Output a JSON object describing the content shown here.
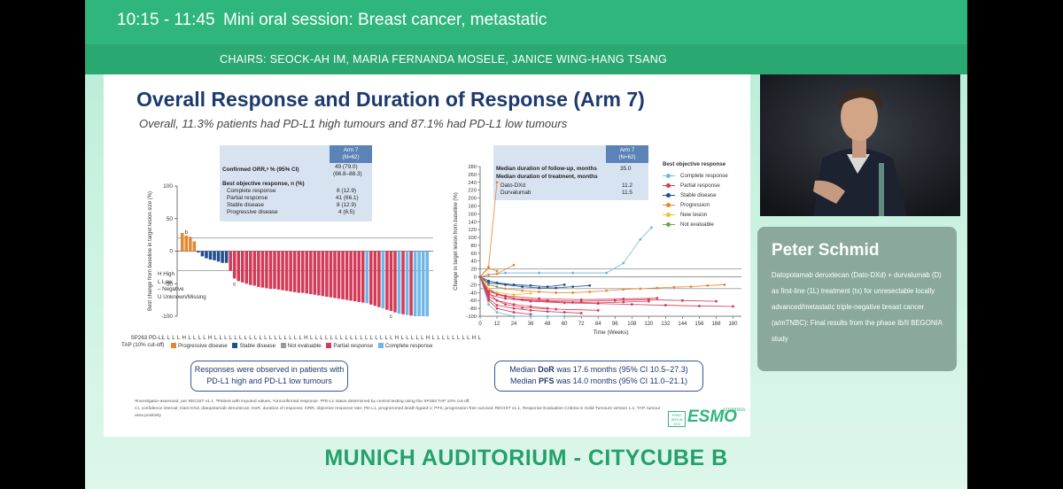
{
  "session": {
    "time": "10:15 - 11:45",
    "title": "Mini oral session: Breast cancer, metastatic",
    "chairs": "CHAIRS: SEOCK-AH IM, MARIA FERNANDA MOSELE, JANICE WING-HANG TSANG",
    "venue": "MUNICH AUDITORIUM - CITYCUBE B"
  },
  "speaker": {
    "name": "Peter Schmid",
    "talk": "Datopotamab deruxtecan (Dato-DXd) + durvalumab (D) as first-line (1L) treatment (tx) for unresectable locally advanced/metastatic triple-negative breast cancer (a/mTNBC): Final results from the phase Ib/II BEGONIA study"
  },
  "slide": {
    "title": "Overall Response and Duration of Response (Arm 7)",
    "subtitle": "Overall, 11.3% patients had PD-L1 high tumours and 87.1% had PD-L1 low tumours",
    "table1": {
      "header": [
        "Arm 7",
        "(N=62)"
      ],
      "orr_label": "Confirmed ORR,ᵃ % (95% CI)",
      "orr_value": [
        "49 (79.0)",
        "(66.8–88.3)"
      ],
      "bor_label": "Best objective response, n (%)",
      "rows": [
        {
          "label": "Complete response",
          "value": "8 (12.9)"
        },
        {
          "label": "Partial response",
          "value": "41 (66.1)"
        },
        {
          "label": "Stable disease",
          "value": "8 (12.9)"
        },
        {
          "label": "Progressive disease",
          "value": "4 (6.5)"
        }
      ]
    },
    "table2": {
      "header": [
        "Arm 7",
        "(N=62)"
      ],
      "followup_label": "Median duration of follow-up, months",
      "followup_value": "35.0",
      "treatment_label": "Median duration of treatment, months",
      "rows": [
        {
          "label": "Dato-DXd",
          "value": "11.2"
        },
        {
          "label": "Durvalumab",
          "value": "11.5"
        }
      ]
    },
    "waterfall_ylabel": "Best change from baseline in target lesion size (%)",
    "hll_legend": [
      "H  High",
      "L  Low",
      "–  Negative",
      "U  Unknown/Missing"
    ],
    "tap_label": [
      "SP263 PD-L1",
      "TAP (10% cut-off)"
    ],
    "tap_codes": "L L L L H L L L L H L L L L L L L L L L L L L L L L L L H L L L L L L L L L L L L L L L L L H L L L L L H L L L L L L L L H L",
    "waterfall_legend": [
      {
        "label": "Progressive disease",
        "color": "#e8862e"
      },
      {
        "label": "Stable disease",
        "color": "#1f4e8f"
      },
      {
        "label": "Not evaluable",
        "color": "#9a9a9a"
      },
      {
        "label": "Partial response",
        "color": "#d43a57"
      },
      {
        "label": "Complete response",
        "color": "#6fb7e6"
      }
    ],
    "callout_left": [
      "Responses were observed in patients with",
      "PD-L1 high and PD-L1 low tumours"
    ],
    "callout_right_dor": [
      "Median ",
      "DoR",
      " was 17.6 months (95% CI 10.5–27.3)"
    ],
    "callout_right_pfs": [
      "Median ",
      "PFS",
      " was 14.0 months (95% CI 11.0–21.1)"
    ],
    "spider_ylabel": "Change in target lesion from baseline (%)",
    "spider_xlabel": "Time (Weeks)",
    "spider_legend_title": "Best objective response",
    "spider_legend": [
      {
        "label": "Complete response",
        "color": "#6fb7e6"
      },
      {
        "label": "Partial response",
        "color": "#d43a57"
      },
      {
        "label": "Stable disease",
        "color": "#1f4e8f"
      },
      {
        "label": "Progression",
        "color": "#e8862e"
      },
      {
        "label": "New lesion",
        "color": "#f2c12e"
      },
      {
        "label": "Not evaluable",
        "color": "#6aa84f"
      }
    ],
    "footnote_1": "ᵃInvestigator-assessed, per RECIST v1.1. ᵇPatient with imputed values. ᶜUnconfirmed response. ᵈPD-L1 status determined by central testing using the SP263 TAP 10% cut-off.",
    "footnote_2": "CI, confidence interval; Dato-DXd, datopotamab deruxtecan; DoR, duration of response; ORR, objective response rate; PD-L1, programmed death ligand-1; PFS, progression-free survival; RECIST v1.1, Response Evaluation Criteria in Solid Tumours version 1.1; TAP, tumour area positivity",
    "esmo_box": [
      "ESMO",
      "BERLIN",
      "2023"
    ],
    "esmo_word": "ESMO",
    "esmo_congress": "congress"
  },
  "chart_data": [
    {
      "type": "bar",
      "title": "",
      "ylabel": "Best change from baseline in target lesion size (%)",
      "ylim": [
        -100,
        100
      ],
      "yticks": [
        100,
        50,
        0,
        -50,
        -100
      ],
      "reference_lines": [
        20,
        -30
      ],
      "bar_annotations": [
        {
          "index": 1,
          "text": "b"
        },
        {
          "index": 13,
          "text": "c"
        },
        {
          "index": 52,
          "text": "c"
        }
      ],
      "categories_response": [
        "PD",
        "PD",
        "PD",
        "PD",
        "SD",
        "SD",
        "SD",
        "SD",
        "SD",
        "SD",
        "SD",
        "SD",
        "PR",
        "PR",
        "PR",
        "PR",
        "PR",
        "PR",
        "PR",
        "PR",
        "PR",
        "PR",
        "PR",
        "PR",
        "PR",
        "PR",
        "PR",
        "PR",
        "PR",
        "PR",
        "PR",
        "PR",
        "PR",
        "PR",
        "PR",
        "PR",
        "PR",
        "PR",
        "PR",
        "PR",
        "PR",
        "PR",
        "PR",
        "PR",
        "PR",
        "PR",
        "CR",
        "PR",
        "PR",
        "PR",
        "CR",
        "PR",
        "PR",
        "PR",
        "CR",
        "PR",
        "CR",
        "PR",
        "CR",
        "CR",
        "CR",
        "CR"
      ],
      "values": [
        28,
        24,
        22,
        15,
        -2,
        -8,
        -11,
        -13,
        -14,
        -16,
        -18,
        -18,
        -30,
        -42,
        -46,
        -48,
        -50,
        -52,
        -53,
        -55,
        -56,
        -57,
        -58,
        -58,
        -59,
        -60,
        -61,
        -62,
        -63,
        -64,
        -64,
        -65,
        -66,
        -67,
        -68,
        -69,
        -70,
        -71,
        -72,
        -73,
        -74,
        -75,
        -76,
        -77,
        -78,
        -79,
        -80,
        -82,
        -84,
        -86,
        -88,
        -90,
        -92,
        -94,
        -96,
        -97,
        -98,
        -99,
        -100,
        -100,
        -100,
        -100
      ]
    },
    {
      "type": "line",
      "title": "",
      "xlabel": "Time (Weeks)",
      "ylabel": "Change in target lesion from baseline (%)",
      "xlim": [
        0,
        186
      ],
      "ylim": [
        -100,
        280
      ],
      "xticks": [
        0,
        12,
        24,
        36,
        48,
        60,
        72,
        84,
        96,
        108,
        120,
        132,
        144,
        156,
        168,
        180
      ],
      "yticks": [
        280,
        260,
        240,
        220,
        200,
        180,
        160,
        140,
        120,
        100,
        80,
        60,
        40,
        20,
        0,
        -20,
        -40,
        -60,
        -80,
        -100
      ],
      "reference_lines": [
        20,
        0,
        -30
      ],
      "series": [
        {
          "name": "Progression",
          "x": [
            0,
            6,
            12
          ],
          "y": [
            0,
            25,
            240
          ]
        },
        {
          "name": "Progression",
          "x": [
            0,
            6,
            12
          ],
          "y": [
            0,
            22,
            15
          ]
        },
        {
          "name": "Complete response",
          "x": [
            0,
            6,
            18,
            42,
            66,
            90,
            102,
            114,
            122
          ],
          "y": [
            0,
            5,
            10,
            10,
            10,
            10,
            35,
            95,
            125
          ]
        },
        {
          "name": "Partial response",
          "x": [
            0,
            6,
            12,
            24,
            36,
            48
          ],
          "y": [
            0,
            -40,
            -60,
            -70,
            -75,
            -80
          ]
        },
        {
          "name": "Partial response",
          "x": [
            0,
            6,
            12,
            24,
            48,
            72,
            96,
            120,
            144,
            168
          ],
          "y": [
            0,
            -30,
            -45,
            -55,
            -60,
            -62,
            -60,
            -58,
            -60,
            -62
          ]
        },
        {
          "name": "Partial response",
          "x": [
            0,
            6,
            18,
            30,
            54,
            84
          ],
          "y": [
            0,
            -50,
            -70,
            -78,
            -82,
            -85
          ]
        },
        {
          "name": "Partial response",
          "x": [
            0,
            6,
            12,
            24,
            36
          ],
          "y": [
            0,
            -60,
            -80,
            -90,
            -95
          ]
        },
        {
          "name": "Stable disease",
          "x": [
            0,
            6,
            12,
            24,
            36,
            48,
            60
          ],
          "y": [
            0,
            -10,
            -15,
            -20,
            -22,
            -25,
            -20
          ]
        },
        {
          "name": "Stable disease",
          "x": [
            0,
            6,
            18,
            30,
            42,
            54,
            66,
            78
          ],
          "y": [
            0,
            -15,
            -20,
            -25,
            -28,
            -28,
            -25,
            -22
          ]
        },
        {
          "name": "Progression",
          "x": [
            0,
            6,
            18,
            30,
            42,
            54,
            66,
            78,
            90,
            102,
            114,
            126,
            138,
            150,
            162,
            174
          ],
          "y": [
            0,
            -20,
            -30,
            -35,
            -38,
            -40,
            -40,
            -38,
            -35,
            -32,
            -30,
            -28,
            -26,
            -25,
            -22,
            -20
          ]
        },
        {
          "name": "Partial response",
          "x": [
            0,
            6,
            18,
            36,
            60,
            84,
            108,
            132,
            156,
            180
          ],
          "y": [
            0,
            -45,
            -55,
            -62,
            -66,
            -68,
            -70,
            -72,
            -74,
            -75
          ]
        },
        {
          "name": "Complete response",
          "x": [
            0,
            6,
            12,
            24,
            36,
            48,
            60
          ],
          "y": [
            0,
            -70,
            -90,
            -100,
            -100,
            -100,
            -100
          ]
        },
        {
          "name": "Partial response",
          "x": [
            0,
            6,
            18,
            30,
            48,
            66,
            84,
            102,
            120
          ],
          "y": [
            0,
            -35,
            -50,
            -58,
            -62,
            -65,
            -66,
            -64,
            -62
          ]
        },
        {
          "name": "Not evaluable",
          "x": [
            0,
            6,
            12
          ],
          "y": [
            0,
            -20,
            -25
          ]
        },
        {
          "name": "Partial response",
          "x": [
            0,
            6,
            12,
            24,
            36,
            48,
            60,
            72
          ],
          "y": [
            0,
            -55,
            -72,
            -80,
            -85,
            -88,
            -90,
            -92
          ]
        },
        {
          "name": "Progression",
          "x": [
            0,
            6,
            12,
            24
          ],
          "y": [
            0,
            5,
            8,
            30
          ]
        },
        {
          "name": "New lesion",
          "x": [
            0,
            6,
            12,
            24,
            36
          ],
          "y": [
            0,
            -30,
            -40,
            -45,
            -42
          ]
        },
        {
          "name": "Partial response",
          "x": [
            0,
            6,
            18,
            42,
            72,
            102,
            126
          ],
          "y": [
            0,
            -38,
            -48,
            -55,
            -58,
            -56,
            -54
          ]
        }
      ]
    }
  ]
}
